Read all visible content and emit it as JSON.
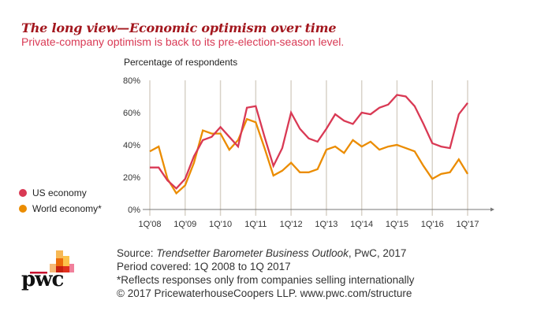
{
  "header": {
    "title": "The long view—Economic optimism over time",
    "subtitle": "Private-company optimism is back to its pre-election-season level."
  },
  "chart_data": {
    "type": "line",
    "title": "The long view—Economic optimism over time",
    "ylabel": "Percentage of respondents",
    "xlabel": "",
    "ylim": [
      0,
      80
    ],
    "yticks": [
      "0%",
      "20%",
      "40%",
      "60%",
      "80%"
    ],
    "ytick_values": [
      0,
      20,
      40,
      60,
      80
    ],
    "xtick_labels": [
      "1Q'08",
      "1Q'09",
      "1Q'10",
      "1Q'11",
      "1Q'12",
      "1Q'13",
      "1Q'14",
      "1Q'15",
      "1Q'16",
      "1Q'17"
    ],
    "quarters_per_tick": 4,
    "grid": "vertical",
    "legend_position": "left",
    "series": [
      {
        "name": "US economy",
        "color": "#d93954",
        "values": [
          26,
          26,
          18,
          13,
          19,
          33,
          43,
          45,
          51,
          45,
          39,
          63,
          64,
          45,
          27,
          38,
          60,
          50,
          44,
          42,
          50,
          59,
          55,
          53,
          60,
          59,
          63,
          65,
          71,
          70,
          64,
          53,
          41,
          39,
          38,
          59,
          66
        ]
      },
      {
        "name": "World economy*",
        "color": "#eb8c00",
        "values": [
          36,
          39,
          19,
          10,
          15,
          29,
          49,
          47,
          47,
          37,
          43,
          56,
          54,
          38,
          21,
          24,
          29,
          23,
          23,
          25,
          37,
          39,
          35,
          43,
          39,
          42,
          37,
          39,
          40,
          38,
          36,
          27,
          19,
          22,
          23,
          31,
          22
        ]
      }
    ]
  },
  "legend": {
    "items": [
      {
        "label": "US economy",
        "color": "#d93954"
      },
      {
        "label": "World economy*",
        "color": "#eb8c00"
      }
    ]
  },
  "footer": {
    "source_prefix": "Source: ",
    "source_title": "Trendsetter Barometer Business Outlook",
    "source_suffix": ", PwC, 2017",
    "period": "Period covered: 1Q 2008 to 1Q 2017",
    "note": "*Reflects responses only from companies selling internationally",
    "copyright": "© 2017 PricewaterhouseCoopers LLP.  www.pwc.com/structure"
  },
  "logo": {
    "text": "pwc"
  }
}
